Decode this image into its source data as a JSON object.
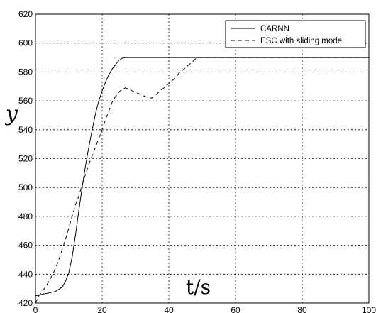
{
  "chart_data": {
    "type": "line",
    "xlabel": "t/s",
    "ylabel": "y",
    "xlim": [
      0,
      100
    ],
    "ylim": [
      420,
      620
    ],
    "xticks": [
      0,
      20,
      40,
      60,
      80,
      100
    ],
    "yticks": [
      420,
      440,
      460,
      480,
      500,
      520,
      540,
      560,
      580,
      600,
      620
    ],
    "grid": true,
    "legend_position": "top-right",
    "series": [
      {
        "name": "CARNN",
        "style": "solid",
        "color": "#000000",
        "x": [
          0,
          2,
          4,
          6,
          8,
          9,
          10,
          11,
          12,
          13,
          14,
          15,
          16,
          17,
          18,
          19,
          20,
          21,
          22,
          23,
          24,
          25,
          26,
          27,
          28,
          30,
          35,
          40,
          50,
          60,
          70,
          80,
          90,
          100
        ],
        "y": [
          425,
          426,
          427,
          428,
          431,
          435,
          441,
          452,
          467,
          484,
          500,
          515,
          528,
          540,
          551,
          560,
          567,
          573,
          578,
          582,
          585,
          588,
          589.5,
          590,
          590,
          590,
          590,
          590,
          590,
          590,
          590,
          590,
          590,
          590
        ]
      },
      {
        "name": "ESC with sliding mode",
        "style": "dashed",
        "color": "#000000",
        "x": [
          0,
          1,
          2,
          3,
          4,
          5,
          6,
          7,
          8,
          9,
          10,
          11,
          12,
          13,
          14,
          15,
          16,
          17,
          18,
          19,
          20,
          21,
          22,
          23,
          24,
          25,
          26,
          27,
          28,
          29,
          30,
          31,
          32,
          33,
          34,
          35,
          36,
          37,
          38,
          39,
          40,
          41,
          42,
          43,
          44,
          45,
          46,
          47,
          48,
          49,
          50,
          55,
          60,
          70,
          80,
          90,
          100
        ],
        "y": [
          420,
          425,
          428,
          431,
          435,
          439,
          444,
          450,
          457,
          464,
          472,
          480,
          488,
          494,
          502,
          509,
          516,
          522,
          528,
          534,
          540,
          547,
          553,
          559,
          563,
          566,
          568,
          569,
          568,
          567,
          566,
          565,
          564,
          563,
          562,
          562,
          564,
          566,
          568,
          570,
          572,
          574,
          576,
          579,
          581,
          583,
          585,
          587,
          589,
          590,
          590,
          590,
          590,
          590,
          590,
          590,
          590
        ]
      }
    ]
  }
}
